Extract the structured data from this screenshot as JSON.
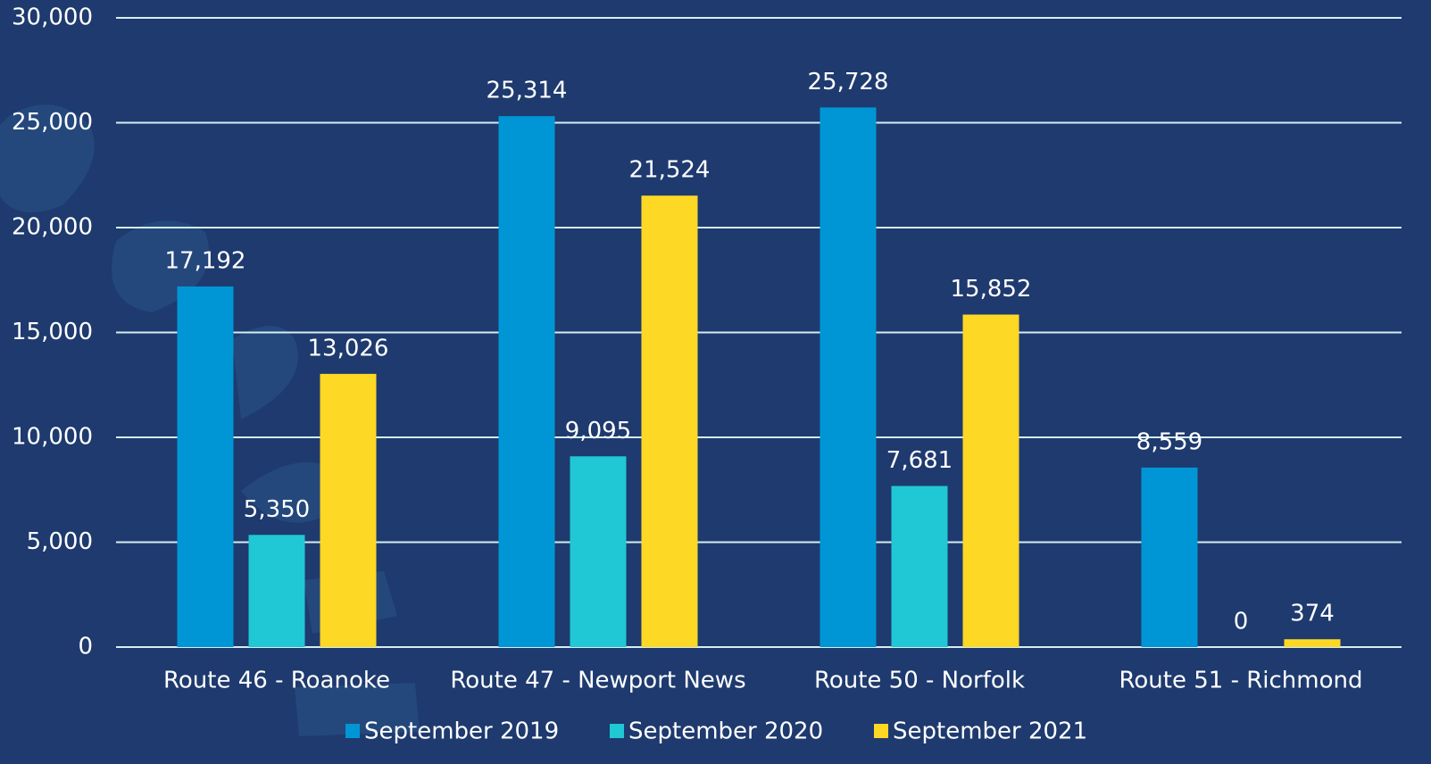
{
  "chart_data": {
    "type": "bar",
    "categories": [
      "Route 46 - Roanoke",
      "Route 47 - Newport News",
      "Route 50 - Norfolk",
      "Route 51 - Richmond"
    ],
    "series": [
      {
        "name": "September 2019",
        "color": "#0096d6",
        "values": [
          17192,
          25314,
          25728,
          8559
        ],
        "value_labels": [
          "17,192",
          "25,314",
          "25,728",
          "8,559"
        ]
      },
      {
        "name": "September 2020",
        "color": "#1fc8d4",
        "values": [
          5350,
          9095,
          7681,
          0
        ],
        "value_labels": [
          "5,350",
          "9,095",
          "7,681",
          "0"
        ]
      },
      {
        "name": "September 2021",
        "color": "#fdd825",
        "values": [
          13026,
          21524,
          15852,
          374
        ],
        "value_labels": [
          "13,026",
          "21,524",
          "15,852",
          "374"
        ]
      }
    ],
    "ylim": [
      0,
      30000
    ],
    "yticks": [
      0,
      {
        "value": 5000,
        "label": "5,000"
      },
      {
        "value": 10000,
        "label": "10,000"
      },
      {
        "value": 15000,
        "label": "15,000"
      },
      {
        "value": 20000,
        "label": "20,000"
      },
      {
        "value": 25000,
        "label": "25,000"
      },
      {
        "value": 30000,
        "label": "30,000"
      }
    ],
    "grid": true,
    "legend": "bottom"
  }
}
